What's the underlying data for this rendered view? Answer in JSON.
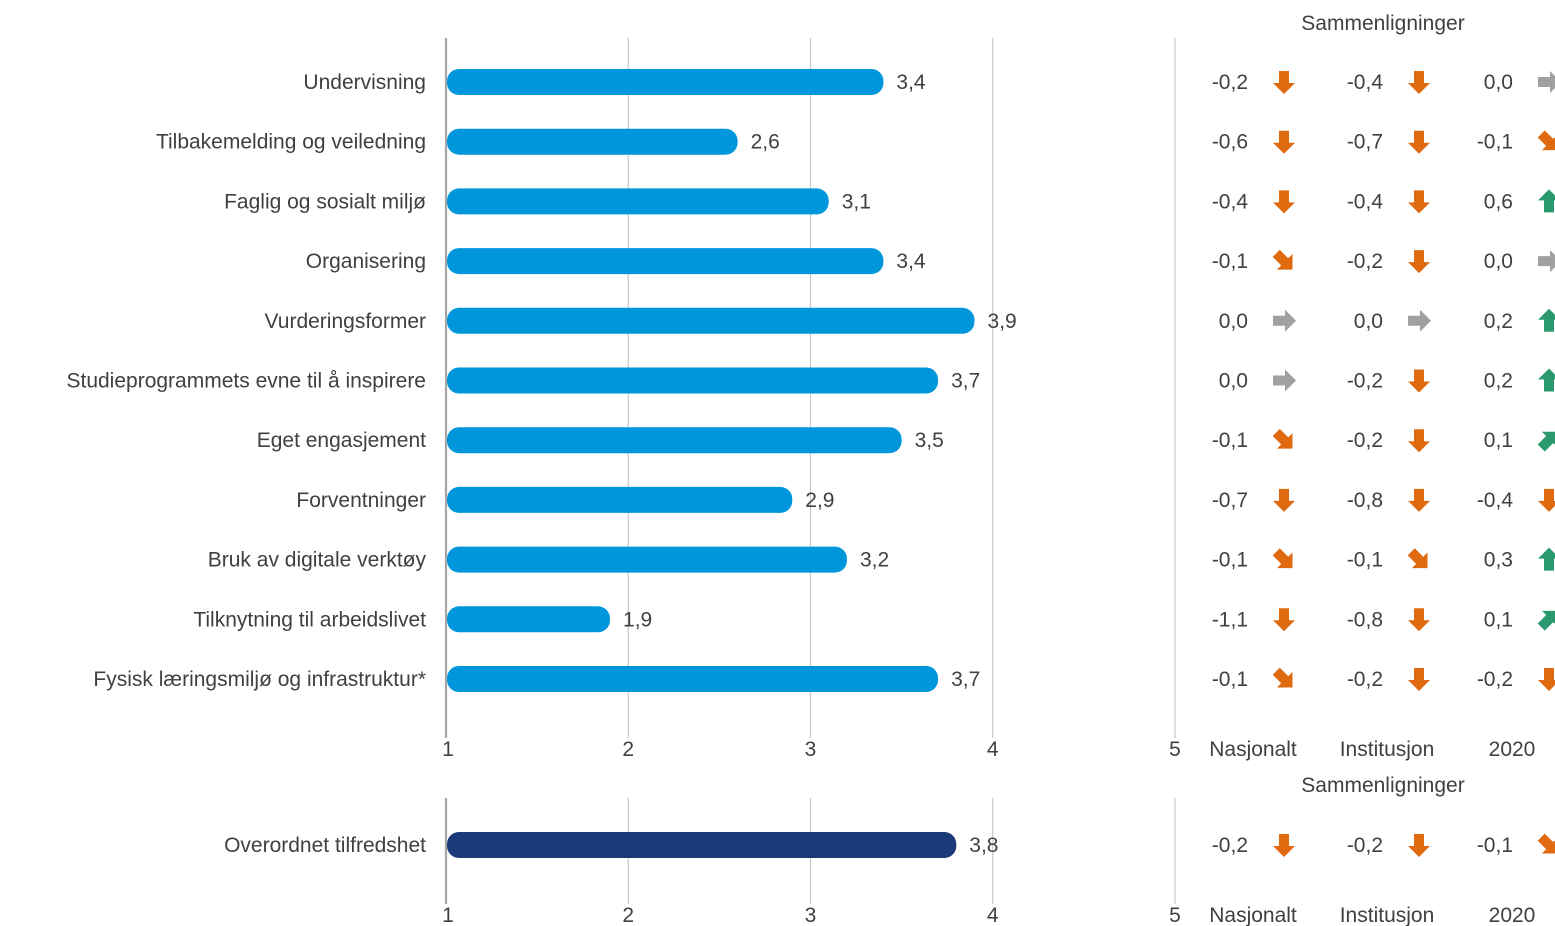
{
  "colors": {
    "bar": "#0096DC",
    "bar_overall": "#1A3A78",
    "down": "#E06A10",
    "up": "#2A9A6E",
    "flat": "#A0A0A0",
    "axis": "#A6A6A6",
    "grid": "#C8C8C8",
    "text": "#404040"
  },
  "comparisons_header": "Sammenligninger",
  "comparison_columns": [
    "Nasjonalt",
    "Institusjon",
    "2020"
  ],
  "chart_data": [
    {
      "type": "bar",
      "orientation": "horizontal",
      "categories": [
        "Undervisning",
        "Tilbakemelding og veiledning",
        "Faglig og sosialt miljø",
        "Organisering",
        "Vurderingsformer",
        "Studieprogrammets evne til å inspirere",
        "Eget engasjement",
        "Forventninger",
        "Bruk av digitale verktøy",
        "Tilknytning til arbeidslivet",
        "Fysisk læringsmiljø og infrastruktur*"
      ],
      "values": [
        3.4,
        2.6,
        3.1,
        3.4,
        3.9,
        3.7,
        3.5,
        2.9,
        3.2,
        1.9,
        3.7
      ],
      "value_labels": [
        "3,4",
        "2,6",
        "3,1",
        "3,4",
        "3,9",
        "3,7",
        "3,5",
        "2,9",
        "3,2",
        "1,9",
        "3,7"
      ],
      "xlim": [
        1,
        5
      ],
      "xticks": [
        "1",
        "2",
        "3",
        "4",
        "5"
      ],
      "grid": true,
      "comparisons": [
        {
          "values": [
            "-0,2",
            "-0,4",
            "0,0"
          ],
          "arrows": [
            "down",
            "down",
            "right"
          ]
        },
        {
          "values": [
            "-0,6",
            "-0,7",
            "-0,1"
          ],
          "arrows": [
            "down",
            "down",
            "down-right"
          ]
        },
        {
          "values": [
            "-0,4",
            "-0,4",
            "0,6"
          ],
          "arrows": [
            "down",
            "down",
            "up"
          ]
        },
        {
          "values": [
            "-0,1",
            "-0,2",
            "0,0"
          ],
          "arrows": [
            "down-right",
            "down",
            "right"
          ]
        },
        {
          "values": [
            "0,0",
            "0,0",
            "0,2"
          ],
          "arrows": [
            "right",
            "right",
            "up"
          ]
        },
        {
          "values": [
            "0,0",
            "-0,2",
            "0,2"
          ],
          "arrows": [
            "right",
            "down",
            "up"
          ]
        },
        {
          "values": [
            "-0,1",
            "-0,2",
            "0,1"
          ],
          "arrows": [
            "down-right",
            "down",
            "up-right"
          ]
        },
        {
          "values": [
            "-0,7",
            "-0,8",
            "-0,4"
          ],
          "arrows": [
            "down",
            "down",
            "down"
          ]
        },
        {
          "values": [
            "-0,1",
            "-0,1",
            "0,3"
          ],
          "arrows": [
            "down-right",
            "down-right",
            "up"
          ]
        },
        {
          "values": [
            "-1,1",
            "-0,8",
            "0,1"
          ],
          "arrows": [
            "down",
            "down",
            "up-right"
          ]
        },
        {
          "values": [
            "-0,1",
            "-0,2",
            "-0,2"
          ],
          "arrows": [
            "down-right",
            "down",
            "down"
          ]
        }
      ]
    },
    {
      "type": "bar",
      "orientation": "horizontal",
      "categories": [
        "Overordnet tilfredshet"
      ],
      "values": [
        3.8
      ],
      "value_labels": [
        "3,8"
      ],
      "xlim": [
        1,
        5
      ],
      "xticks": [
        "1",
        "2",
        "3",
        "4",
        "5"
      ],
      "grid": true,
      "comparisons": [
        {
          "values": [
            "-0,2",
            "-0,2",
            "-0,1"
          ],
          "arrows": [
            "down",
            "down",
            "down-right"
          ]
        }
      ]
    }
  ]
}
